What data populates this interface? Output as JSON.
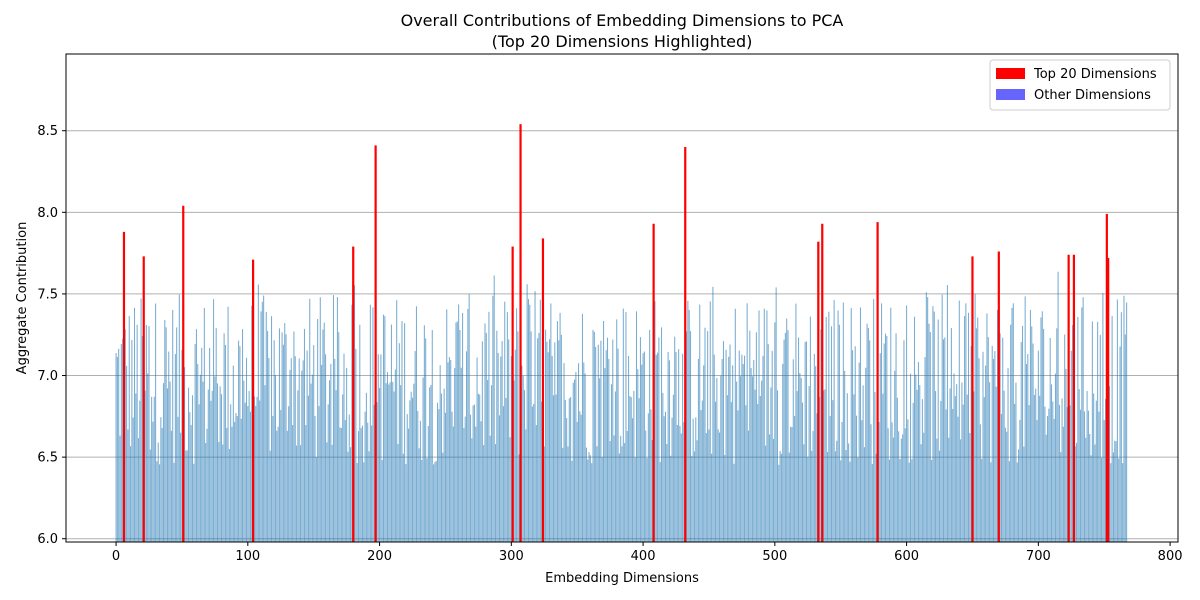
{
  "chart_data": {
    "type": "bar",
    "title": "Overall Contributions of Embedding Dimensions to PCA",
    "subtitle": "(Top 20 Dimensions Highlighted)",
    "xlabel": "Embedding Dimensions",
    "ylabel": "Aggregate Contribution",
    "xlim": [
      -38,
      806
    ],
    "ylim": [
      5.98,
      8.97
    ],
    "xticks": [
      0,
      100,
      200,
      300,
      400,
      500,
      600,
      700,
      800
    ],
    "yticks": [
      6.0,
      6.5,
      7.0,
      7.5,
      8.0,
      8.5
    ],
    "ytick_labels": [
      "6.0",
      "6.5",
      "7.0",
      "7.5",
      "8.0",
      "8.5"
    ],
    "grid": "y",
    "legend_position": "top-right",
    "colors": {
      "top": "#ff0000",
      "other": "#1f77b4",
      "other_legend": "#6666ff",
      "grid": "#b0b0b0"
    },
    "n_dimensions": 768,
    "top20": [
      {
        "x": 6,
        "value": 7.88
      },
      {
        "x": 21,
        "value": 7.73
      },
      {
        "x": 51,
        "value": 8.04
      },
      {
        "x": 104,
        "value": 7.71
      },
      {
        "x": 180,
        "value": 7.79
      },
      {
        "x": 197,
        "value": 8.41
      },
      {
        "x": 301,
        "value": 7.79
      },
      {
        "x": 307,
        "value": 8.54
      },
      {
        "x": 324,
        "value": 7.84
      },
      {
        "x": 408,
        "value": 7.93
      },
      {
        "x": 432,
        "value": 8.4
      },
      {
        "x": 533,
        "value": 7.82
      },
      {
        "x": 536,
        "value": 7.93
      },
      {
        "x": 578,
        "value": 7.94
      },
      {
        "x": 650,
        "value": 7.73
      },
      {
        "x": 670,
        "value": 7.76
      },
      {
        "x": 723,
        "value": 7.74
      },
      {
        "x": 727,
        "value": 7.74
      },
      {
        "x": 752,
        "value": 7.99
      },
      {
        "x": 753,
        "value": 7.72
      }
    ],
    "other_values_note": "",
    "series": [
      {
        "name": "Top 20 Dimensions",
        "color": "#ff0000"
      },
      {
        "name": "Other Dimensions",
        "color": "#6666ff"
      }
    ]
  }
}
